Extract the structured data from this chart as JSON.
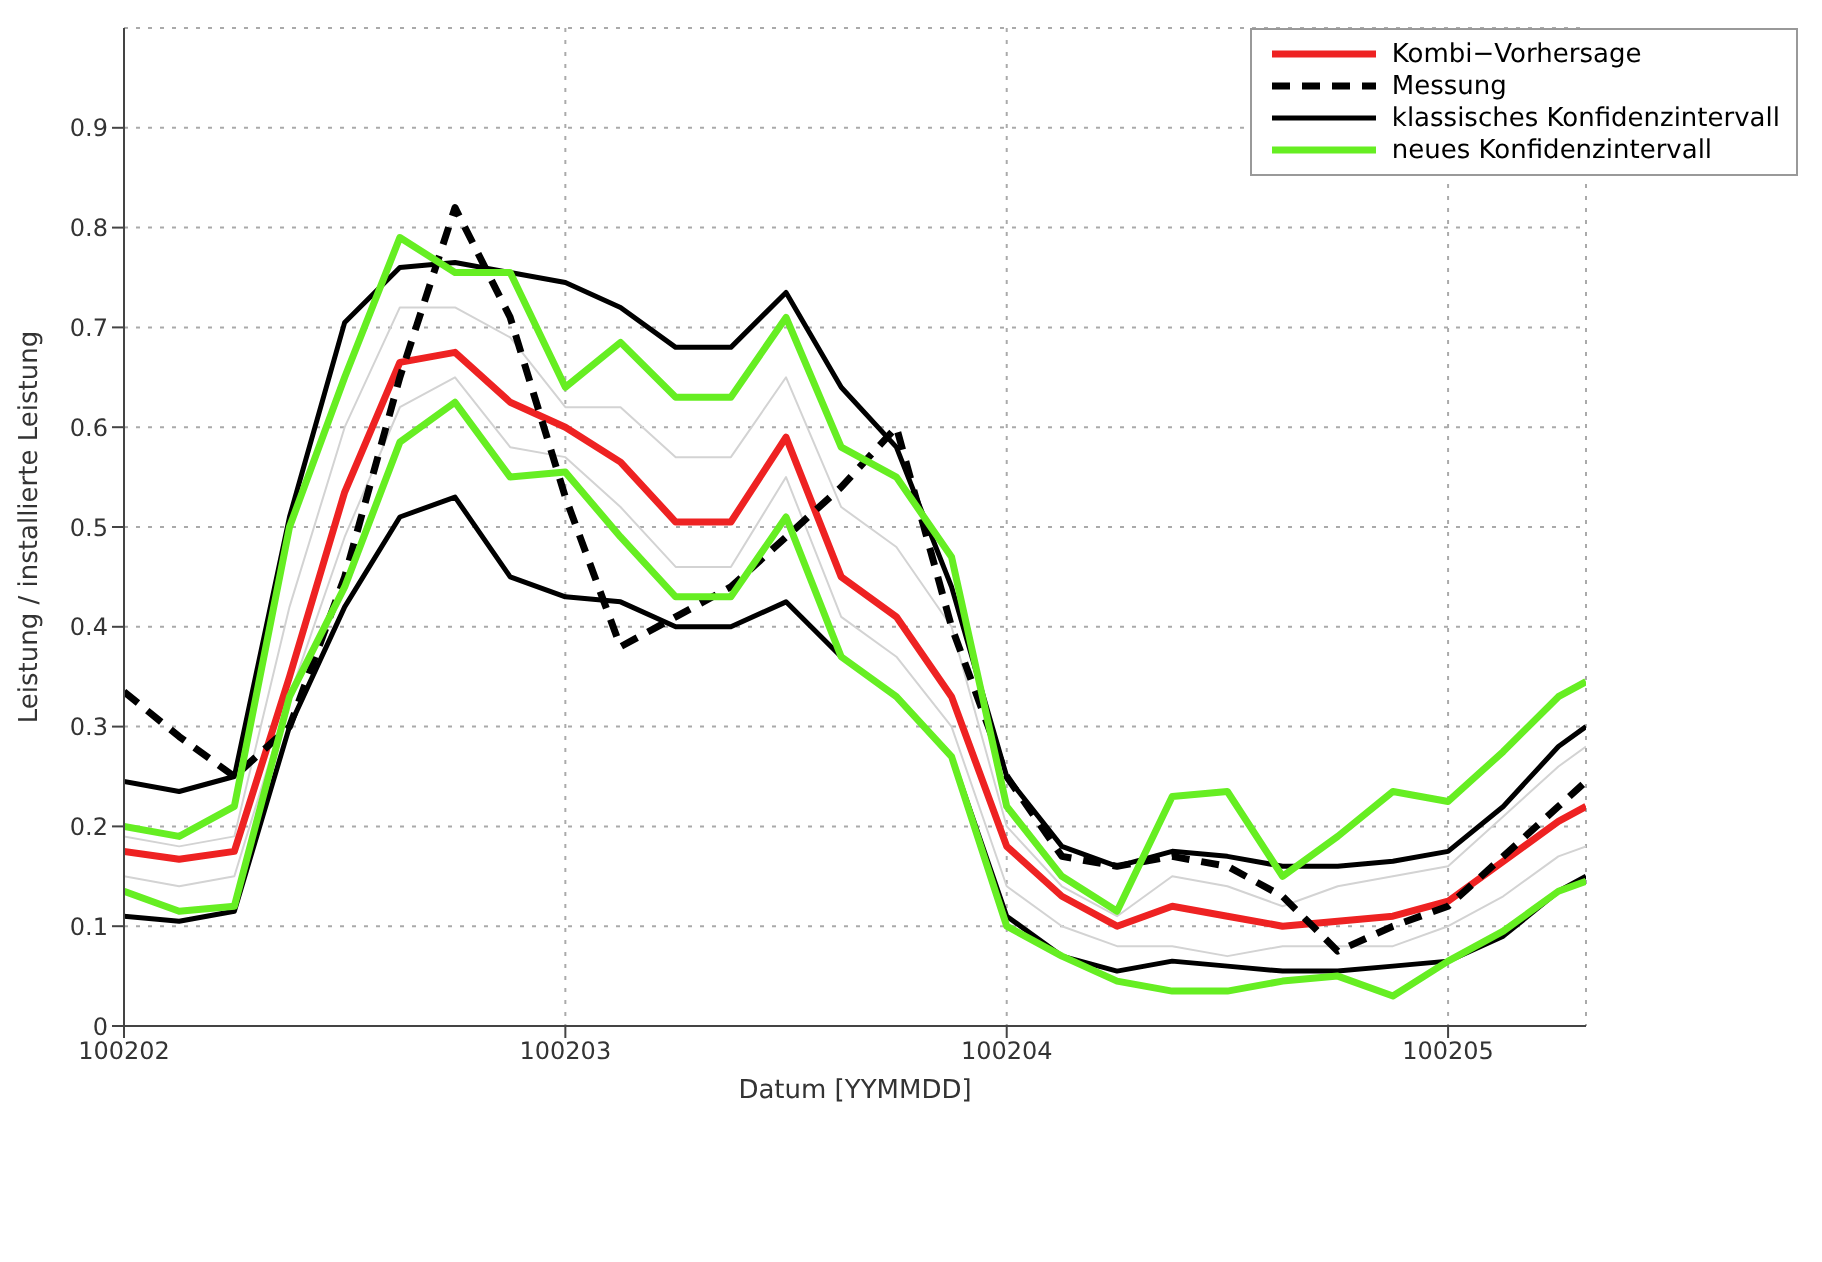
{
  "chart_data": {
    "type": "line",
    "xlabel": "Datum [YYMMDD]",
    "ylabel": "Leistung / installierte Leistung",
    "x": [
      "--02-02T00:00",
      "--02-02T03:00",
      "--02-02T06:00",
      "--02-02T09:00",
      "--02-02T12:00",
      "--02-02T15:00",
      "--02-02T18:00",
      "--02-02T21:00",
      "--02-03T00:00",
      "--02-03T03:00",
      "--02-03T06:00",
      "--02-03T09:00",
      "--02-03T12:00",
      "--02-03T15:00",
      "--02-03T18:00",
      "--02-03T21:00",
      "--02-04T00:00",
      "--02-04T03:00",
      "--02-04T06:00",
      "--02-04T09:00",
      "--02-04T12:00",
      "--02-04T15:00",
      "--02-04T18:00",
      "--02-04T21:00",
      "--02-05T00:00",
      "--02-05T03:00",
      "--02-05T06:00",
      "--02-05T07:30"
    ],
    "xlim": [
      "--02-02T00:00",
      "--02-05T07:30"
    ],
    "xticks": [
      {
        "value": "--02-02",
        "label": "100202"
      },
      {
        "value": "--02-03",
        "label": "100203"
      },
      {
        "value": "--02-04",
        "label": "100204"
      },
      {
        "value": "--02-05",
        "label": "100205"
      }
    ],
    "ylim": [
      0,
      1
    ],
    "yticks": [
      0,
      0.1,
      0.2,
      0.3,
      0.4,
      0.5,
      0.6,
      0.7,
      0.8,
      0.9
    ],
    "grid": true,
    "legend": "top right",
    "marker": "none",
    "series": [
      {
        "color": "#d3d3d3",
        "values": [
          0.19,
          0.18,
          0.19,
          0.42,
          0.6,
          0.72,
          0.72,
          0.69,
          0.62,
          0.62,
          0.57,
          0.57,
          0.65,
          0.52,
          0.48,
          0.4,
          0.2,
          0.14,
          0.11,
          0.15,
          0.14,
          0.12,
          0.14,
          0.15,
          0.16,
          0.21,
          0.26,
          0.28
        ]
      },
      {
        "color": "#d3d3d3",
        "values": [
          0.15,
          0.14,
          0.15,
          0.33,
          0.49,
          0.62,
          0.65,
          0.58,
          0.57,
          0.52,
          0.46,
          0.46,
          0.55,
          0.41,
          0.37,
          0.3,
          0.14,
          0.1,
          0.08,
          0.08,
          0.07,
          0.08,
          0.08,
          0.08,
          0.1,
          0.13,
          0.17,
          0.18
        ]
      },
      {
        "name": "Kombi−Vorhersage",
        "color": "#ee2222",
        "values": [
          0.175,
          0.167,
          0.175,
          0.35,
          0.535,
          0.665,
          0.675,
          0.625,
          0.6,
          0.565,
          0.505,
          0.505,
          0.59,
          0.45,
          0.41,
          0.33,
          0.18,
          0.13,
          0.1,
          0.12,
          0.11,
          0.1,
          0.105,
          0.11,
          0.125,
          0.165,
          0.205,
          0.22
        ]
      },
      {
        "name": "Messung",
        "color": "#000000",
        "line_style": "dashed",
        "values": [
          0.335,
          0.29,
          0.25,
          0.3,
          0.45,
          0.65,
          0.82,
          0.71,
          0.53,
          0.38,
          0.41,
          0.44,
          0.49,
          0.54,
          0.6,
          0.4,
          0.25,
          0.17,
          0.16,
          0.17,
          0.16,
          0.13,
          0.075,
          0.1,
          0.12,
          0.17,
          0.22,
          0.245
        ]
      },
      {
        "name": "klassisches Konfidenzintervall",
        "color": "#000000",
        "values": [
          0.245,
          0.235,
          0.25,
          0.51,
          0.705,
          0.76,
          0.765,
          0.755,
          0.745,
          0.72,
          0.68,
          0.68,
          0.735,
          0.64,
          0.58,
          0.44,
          0.25,
          0.18,
          0.16,
          0.175,
          0.17,
          0.16,
          0.16,
          0.165,
          0.175,
          0.22,
          0.28,
          0.3
        ]
      },
      {
        "color": "#000000",
        "values": [
          0.11,
          0.105,
          0.115,
          0.3,
          0.42,
          0.51,
          0.53,
          0.45,
          0.43,
          0.425,
          0.4,
          0.4,
          0.425,
          0.37,
          0.33,
          0.27,
          0.11,
          0.07,
          0.055,
          0.065,
          0.06,
          0.055,
          0.055,
          0.06,
          0.065,
          0.09,
          0.135,
          0.15
        ]
      },
      {
        "name": "neues Konfidenzintervall",
        "color": "#66ee22",
        "values": [
          0.2,
          0.19,
          0.22,
          0.5,
          0.65,
          0.79,
          0.755,
          0.755,
          0.64,
          0.685,
          0.63,
          0.63,
          0.71,
          0.58,
          0.55,
          0.47,
          0.22,
          0.15,
          0.115,
          0.23,
          0.235,
          0.15,
          0.19,
          0.235,
          0.225,
          0.275,
          0.33,
          0.345
        ]
      },
      {
        "color": "#66ee22",
        "values": [
          0.135,
          0.115,
          0.12,
          0.33,
          0.44,
          0.585,
          0.625,
          0.55,
          0.555,
          0.49,
          0.43,
          0.43,
          0.51,
          0.37,
          0.33,
          0.27,
          0.1,
          0.07,
          0.045,
          0.035,
          0.035,
          0.045,
          0.05,
          0.03,
          0.065,
          0.095,
          0.135,
          0.145
        ]
      }
    ]
  }
}
